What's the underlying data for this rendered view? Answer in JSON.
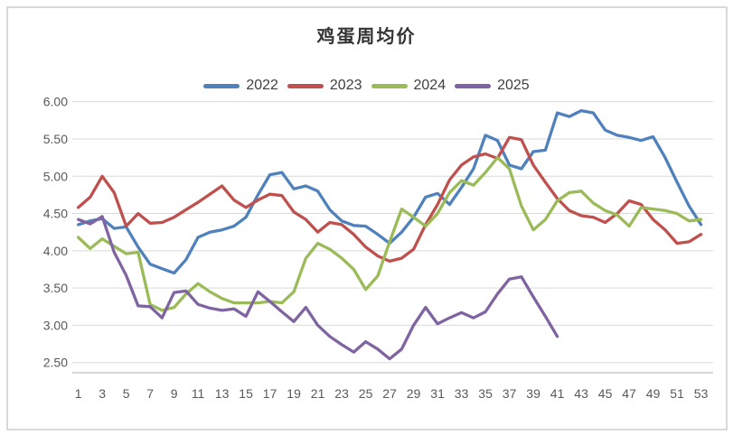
{
  "chart_data": {
    "type": "line",
    "title": "鸡蛋周均价",
    "xlabel": "",
    "ylabel": "",
    "x_unit": "week",
    "x_range": [
      1,
      53
    ],
    "x_tick_labels": [
      "1",
      "3",
      "5",
      "7",
      "9",
      "11",
      "13",
      "15",
      "17",
      "19",
      "21",
      "23",
      "25",
      "27",
      "29",
      "31",
      "33",
      "35",
      "37",
      "39",
      "41",
      "43",
      "45",
      "47",
      "49",
      "51",
      "53"
    ],
    "y_tick_labels": [
      "6.00",
      "5.50",
      "5.00",
      "4.50",
      "4.00",
      "3.50",
      "3.00",
      "2.50"
    ],
    "ylim": [
      2.5,
      6.0
    ],
    "grid": true,
    "legend_position": "top",
    "series": [
      {
        "name": "2022",
        "color": "#4F81BD",
        "values": [
          4.35,
          4.4,
          4.43,
          4.3,
          4.32,
          4.05,
          3.82,
          3.76,
          3.7,
          3.88,
          4.18,
          4.25,
          4.28,
          4.33,
          4.45,
          4.75,
          5.02,
          5.05,
          4.83,
          4.87,
          4.8,
          4.55,
          4.4,
          4.34,
          4.33,
          4.22,
          4.1,
          4.25,
          4.45,
          4.72,
          4.77,
          4.62,
          4.85,
          5.1,
          5.55,
          5.48,
          5.15,
          5.1,
          5.33,
          5.35,
          5.85,
          5.8,
          5.88,
          5.85,
          5.62,
          5.55,
          5.52,
          5.48,
          5.53,
          5.25,
          4.92,
          4.6,
          4.35
        ]
      },
      {
        "name": "2023",
        "color": "#C0504D",
        "values": [
          4.58,
          4.72,
          5.0,
          4.78,
          4.33,
          4.5,
          4.37,
          4.38,
          4.45,
          4.55,
          4.65,
          4.76,
          4.87,
          4.68,
          4.58,
          4.68,
          4.76,
          4.74,
          4.52,
          4.42,
          4.25,
          4.38,
          4.35,
          4.22,
          4.05,
          3.93,
          3.86,
          3.9,
          4.02,
          4.35,
          4.62,
          4.95,
          5.15,
          5.26,
          5.3,
          5.24,
          5.52,
          5.49,
          5.15,
          4.92,
          4.7,
          4.54,
          4.47,
          4.45,
          4.38,
          4.5,
          4.67,
          4.62,
          4.42,
          4.28,
          4.1,
          4.12,
          4.22
        ]
      },
      {
        "name": "2024",
        "color": "#9BBB59",
        "values": [
          4.18,
          4.03,
          4.16,
          4.06,
          3.96,
          3.98,
          3.28,
          3.2,
          3.24,
          3.42,
          3.56,
          3.45,
          3.36,
          3.3,
          3.3,
          3.3,
          3.32,
          3.3,
          3.45,
          3.9,
          4.1,
          4.02,
          3.9,
          3.75,
          3.48,
          3.66,
          4.12,
          4.56,
          4.45,
          4.33,
          4.5,
          4.78,
          4.94,
          4.88,
          5.05,
          5.25,
          5.1,
          4.6,
          4.28,
          4.42,
          4.67,
          4.78,
          4.8,
          4.64,
          4.54,
          4.48,
          4.33,
          4.58,
          4.56,
          4.54,
          4.5,
          4.4,
          4.42
        ]
      },
      {
        "name": "2025",
        "color": "#8064A2",
        "values": [
          4.42,
          4.36,
          4.46,
          3.98,
          3.67,
          3.26,
          3.25,
          3.1,
          3.44,
          3.46,
          3.28,
          3.23,
          3.2,
          3.22,
          3.12,
          3.45,
          3.32,
          3.18,
          3.05,
          3.24,
          3.0,
          2.85,
          2.74,
          2.64,
          2.78,
          2.68,
          2.55,
          2.68,
          3.0,
          3.24,
          3.02,
          3.1,
          3.17,
          3.1,
          3.18,
          3.42,
          3.62,
          3.65,
          3.38,
          3.12,
          2.85
        ]
      }
    ],
    "colors": {
      "gridline": "#d9d9d9",
      "axis_line": "#bfbfbf",
      "tick_text": "#595959",
      "title_text": "#333333",
      "frame_border": "#d9d9d9",
      "background": "#ffffff"
    }
  }
}
